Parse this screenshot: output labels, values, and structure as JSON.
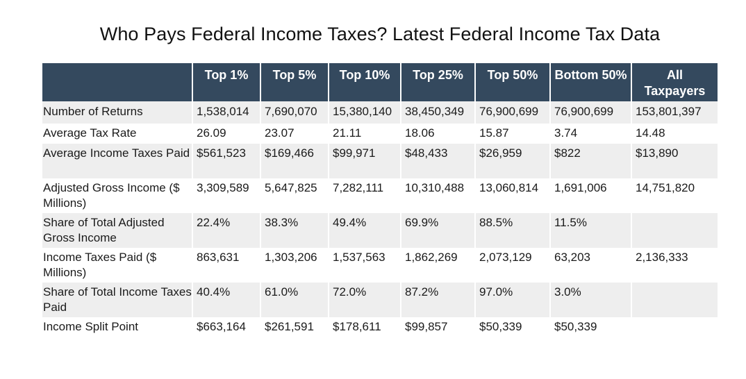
{
  "title": "Who Pays Federal Income Taxes? Latest Federal Income Tax Data",
  "table": {
    "headers": [
      "",
      "Top 1%",
      "Top 5%",
      "Top 10%",
      "Top 25%",
      "Top 50%",
      "Bottom 50%",
      "All Taxpayers"
    ],
    "rows": [
      {
        "label": "Number of Returns",
        "values": [
          "1,538,014",
          "7,690,070",
          "15,380,140",
          "38,450,349",
          "76,900,699",
          "76,900,699",
          "153,801,397"
        ]
      },
      {
        "label": "Average Tax Rate",
        "values": [
          "26.09",
          "23.07",
          "21.11",
          "18.06",
          "15.87",
          "3.74",
          "14.48"
        ]
      },
      {
        "label": "Average Income Taxes Paid",
        "values": [
          "$561,523",
          "$169,466",
          "$99,971",
          "$48,433",
          "$26,959",
          "$822",
          "$13,890"
        ]
      },
      {
        "label": "Adjusted Gross Income ($ Millions)",
        "values": [
          "3,309,589",
          "5,647,825",
          "7,282,111",
          "10,310,488",
          "13,060,814",
          "1,691,006",
          "14,751,820"
        ]
      },
      {
        "label": "Share of Total Adjusted Gross Income",
        "values": [
          "22.4%",
          "38.3%",
          "49.4%",
          "69.9%",
          "88.5%",
          "11.5%",
          ""
        ]
      },
      {
        "label": "Income Taxes Paid ($ Millions)",
        "values": [
          "863,631",
          "1,303,206",
          "1,537,563",
          "1,862,269",
          "2,073,129",
          "63,203",
          "2,136,333"
        ]
      },
      {
        "label": "Share of Total Income Taxes Paid",
        "values": [
          "40.4%",
          "61.0%",
          "72.0%",
          "87.2%",
          "97.0%",
          "3.0%",
          ""
        ]
      },
      {
        "label": "Income Split Point",
        "values": [
          "$663,164",
          "$261,591",
          "$178,611",
          "$99,857",
          "$50,339",
          "$50,339",
          ""
        ]
      }
    ]
  },
  "colors": {
    "header_bg": "#34495e",
    "header_text": "#ffffff",
    "stripe_bg": "#eeeeee"
  }
}
